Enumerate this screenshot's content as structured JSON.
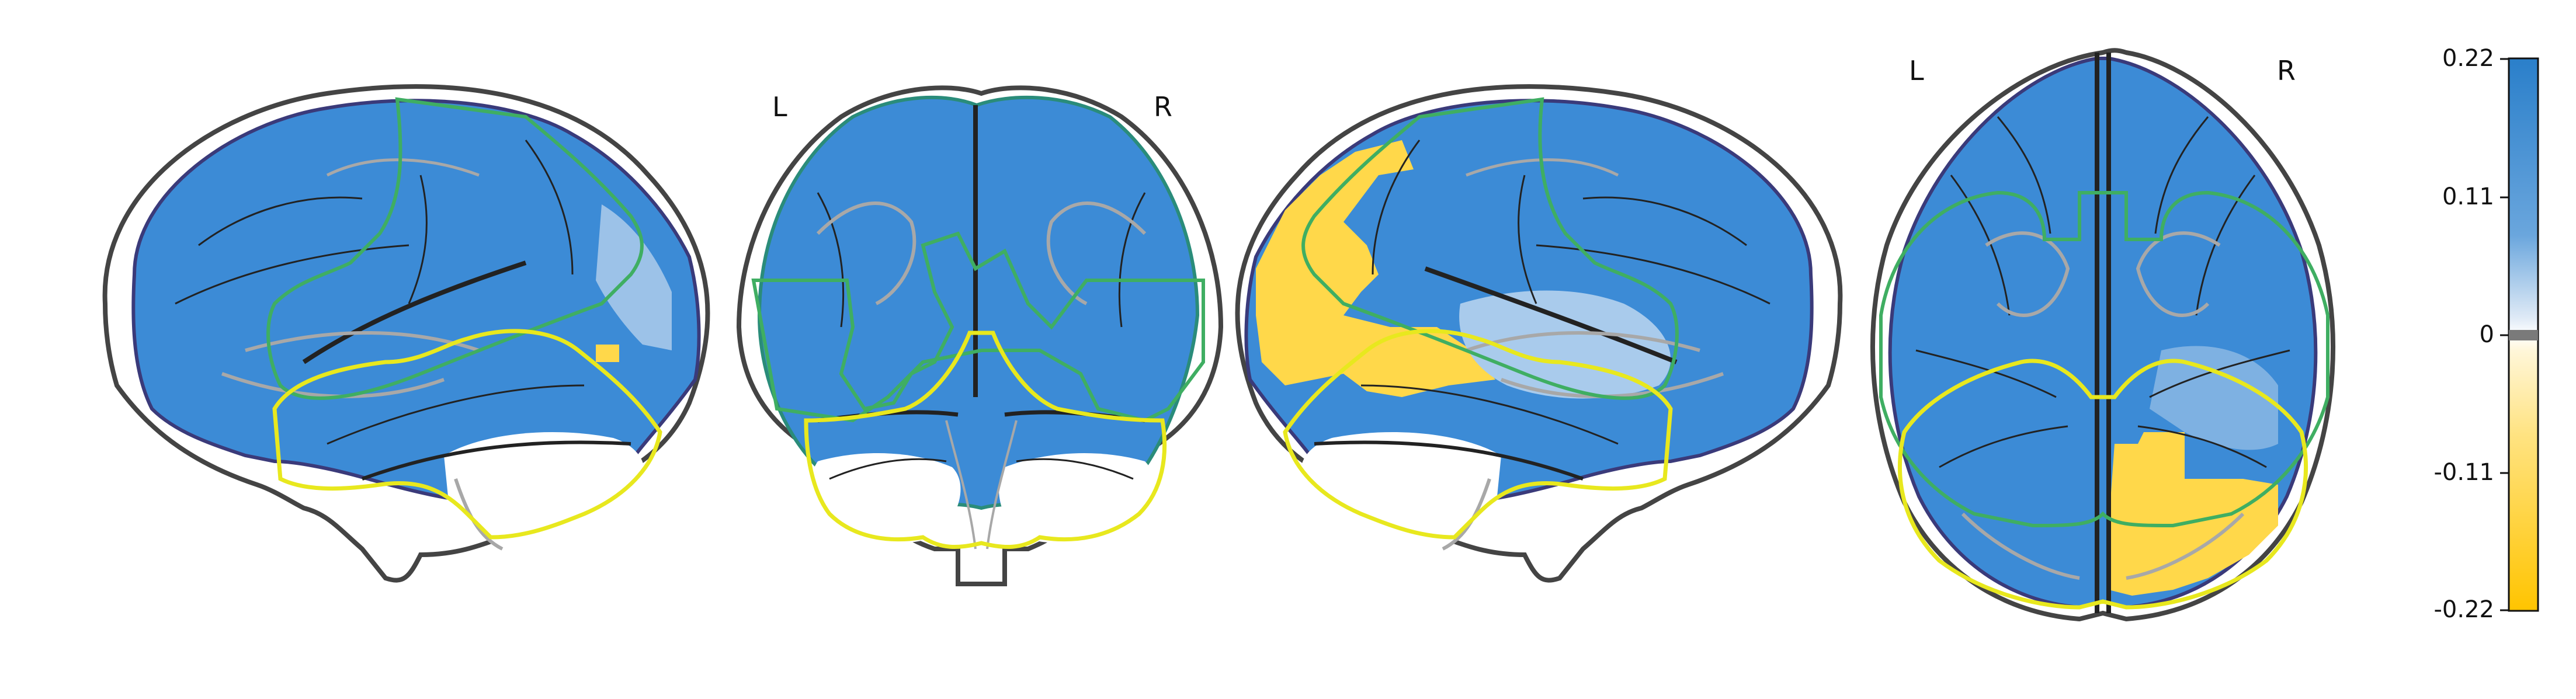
{
  "orientation_labels": {
    "coronal_left": "L",
    "coronal_right": "R",
    "axial_left": "L",
    "axial_right": "R"
  },
  "colorbar": {
    "ticks": [
      "0.22",
      "0.11",
      "0",
      "-0.11",
      "-0.22"
    ],
    "vmax": 0.22,
    "vmin": -0.22,
    "gradient_colors": [
      "#2a7fca",
      "#6aa6dd",
      "#c9dff2",
      "#ffffff",
      "#fff2c0",
      "#ffd84a",
      "#ffc400"
    ]
  },
  "colors": {
    "brain_outline": "#444444",
    "sulci_dark": "#222222",
    "sulci_light": "#a8a8a8",
    "positive": "#3c8bd6",
    "negative": "#ffd84a",
    "contour_green": "#3fae62",
    "contour_yellow": "#e8e81e",
    "contour_teal": "#2a8c7a",
    "contour_navy": "#3a3a7a"
  },
  "views": [
    "sagittal-left",
    "coronal",
    "sagittal-right",
    "axial"
  ]
}
